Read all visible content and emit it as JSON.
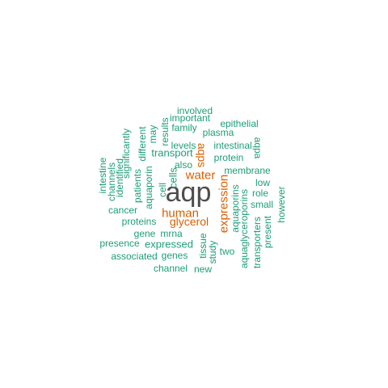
{
  "colors": {
    "dark": "#4d4d4d",
    "orange": "#d95f02",
    "teal": "#1b9e77"
  },
  "words": [
    {
      "text": "aqp",
      "color": "dark"
    },
    {
      "text": "expression",
      "color": "orange"
    },
    {
      "text": "water",
      "color": "orange"
    },
    {
      "text": "human",
      "color": "orange"
    },
    {
      "text": "glycerol",
      "color": "orange"
    },
    {
      "text": "aqps",
      "color": "orange"
    },
    {
      "text": "transport",
      "color": "teal"
    },
    {
      "text": "cells",
      "color": "teal"
    },
    {
      "text": "cell",
      "color": "teal"
    },
    {
      "text": "aquaporin",
      "color": "teal"
    },
    {
      "text": "aquaporins",
      "color": "teal"
    },
    {
      "text": "membrane",
      "color": "teal"
    },
    {
      "text": "protein",
      "color": "teal"
    },
    {
      "text": "intestinal",
      "color": "teal"
    },
    {
      "text": "plasma",
      "color": "teal"
    },
    {
      "text": "epithelial",
      "color": "teal"
    },
    {
      "text": "family",
      "color": "teal"
    },
    {
      "text": "important",
      "color": "teal"
    },
    {
      "text": "involved",
      "color": "teal"
    },
    {
      "text": "levels",
      "color": "teal"
    },
    {
      "text": "also",
      "color": "teal"
    },
    {
      "text": "results",
      "color": "teal"
    },
    {
      "text": "may",
      "color": "teal"
    },
    {
      "text": "different",
      "color": "teal"
    },
    {
      "text": "patients",
      "color": "teal"
    },
    {
      "text": "significantly",
      "color": "teal"
    },
    {
      "text": "identified",
      "color": "teal"
    },
    {
      "text": "channels",
      "color": "teal"
    },
    {
      "text": "intestine",
      "color": "teal"
    },
    {
      "text": "cancer",
      "color": "teal"
    },
    {
      "text": "proteins",
      "color": "teal"
    },
    {
      "text": "gene",
      "color": "teal"
    },
    {
      "text": "mrna",
      "color": "teal"
    },
    {
      "text": "presence",
      "color": "teal"
    },
    {
      "text": "expressed",
      "color": "teal"
    },
    {
      "text": "associated",
      "color": "teal"
    },
    {
      "text": "genes",
      "color": "teal"
    },
    {
      "text": "channel",
      "color": "teal"
    },
    {
      "text": "tissue",
      "color": "teal"
    },
    {
      "text": "study",
      "color": "teal"
    },
    {
      "text": "new",
      "color": "teal"
    },
    {
      "text": "two",
      "color": "teal"
    },
    {
      "text": "aquaglyceroporins",
      "color": "teal"
    },
    {
      "text": "transporters",
      "color": "teal"
    },
    {
      "text": "present",
      "color": "teal"
    },
    {
      "text": "however",
      "color": "teal"
    },
    {
      "text": "small",
      "color": "teal"
    },
    {
      "text": "role",
      "color": "teal"
    },
    {
      "text": "low",
      "color": "teal"
    },
    {
      "text": "aqpa",
      "color": "teal"
    }
  ]
}
